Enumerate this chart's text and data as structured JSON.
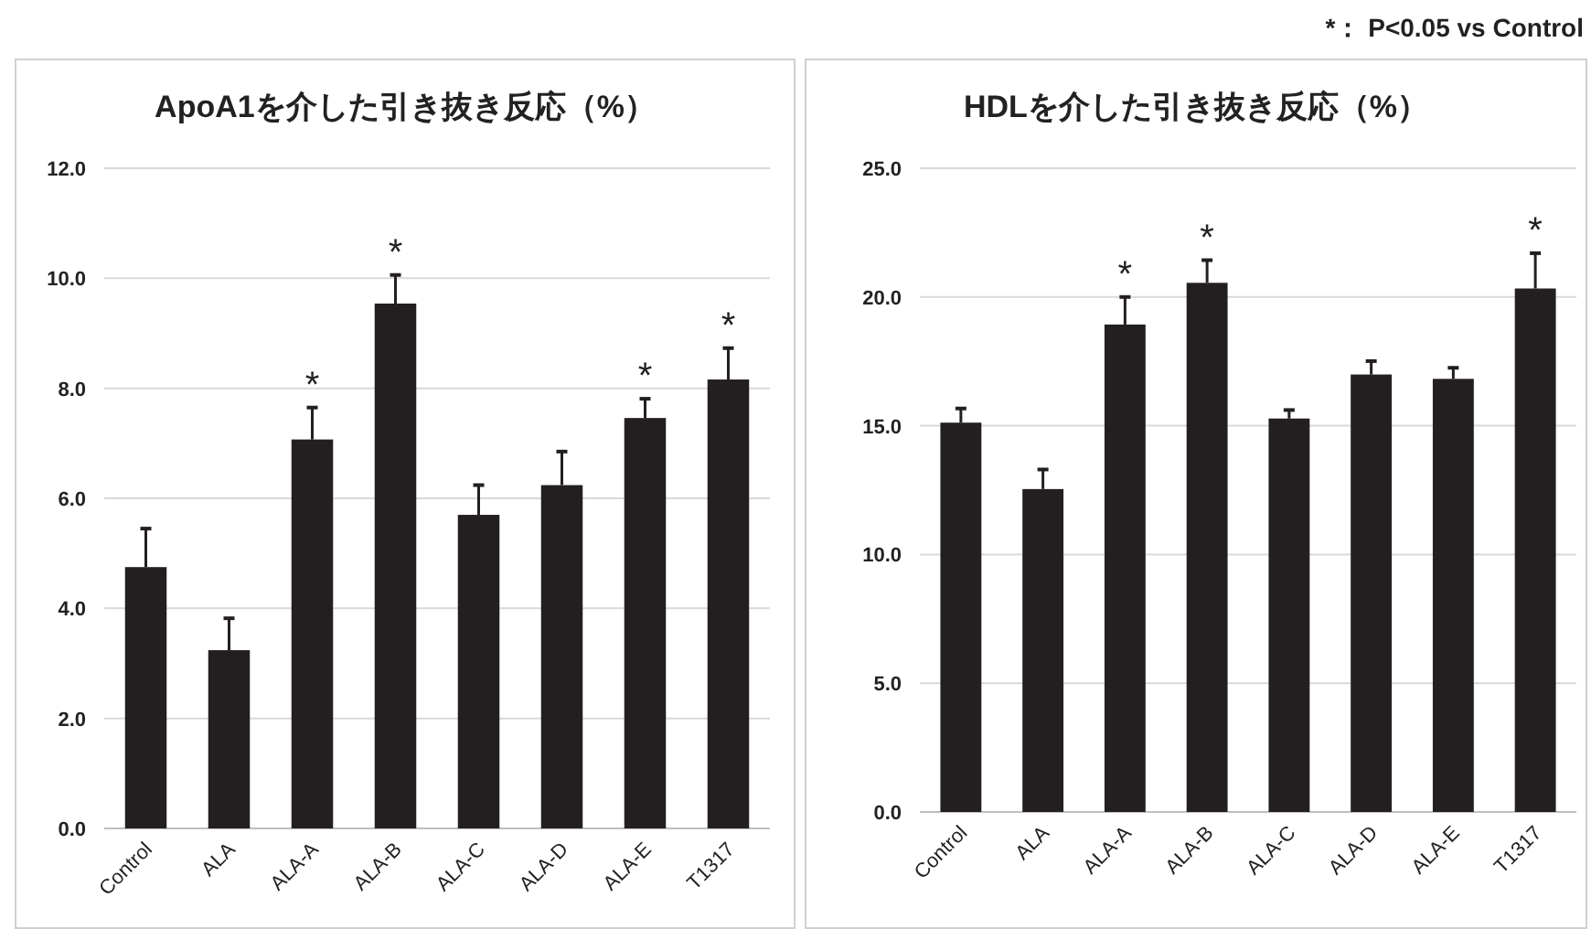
{
  "chart_data": [
    {
      "type": "bar",
      "title": "ApoA1を介した引き抜き反応（%）",
      "categories": [
        "Control",
        "ALA",
        "ALA-A",
        "ALA-B",
        "ALA-C",
        "ALA-D",
        "ALA-E",
        "T1317"
      ],
      "values": [
        4.75,
        3.24,
        7.07,
        9.54,
        5.7,
        6.24,
        7.46,
        8.16
      ],
      "errors": [
        0.7,
        0.58,
        0.58,
        0.52,
        0.54,
        0.61,
        0.35,
        0.57
      ],
      "color": "#231f20",
      "ylim": [
        0,
        12
      ],
      "yticks": [
        {
          "value": 0,
          "label": "0.0"
        },
        {
          "value": 2,
          "label": "2.0"
        },
        {
          "value": 4,
          "label": "4.0"
        },
        {
          "value": 6,
          "label": "6.0"
        },
        {
          "value": 8,
          "label": "8.0"
        },
        {
          "value": 10,
          "label": "10.0"
        },
        {
          "value": 12,
          "label": "12.0"
        }
      ],
      "grid": "y",
      "annotations": [
        {
          "text": "*",
          "x": "ALA-A",
          "y": 7.65
        },
        {
          "text": "*",
          "x": "ALA-B",
          "y": 10.06
        },
        {
          "text": "*",
          "x": "ALA-E",
          "y": 7.81
        },
        {
          "text": "*",
          "x": "T1317",
          "y": 8.73
        }
      ]
    },
    {
      "type": "bar",
      "title": "HDLを介した引き抜き反応（%）",
      "categories": [
        "Control",
        "ALA",
        "ALA-A",
        "ALA-B",
        "ALA-C",
        "ALA-D",
        "ALA-E",
        "T1317"
      ],
      "values": [
        15.12,
        12.54,
        18.93,
        20.55,
        15.28,
        16.99,
        16.82,
        20.33
      ],
      "errors": [
        0.55,
        0.76,
        1.07,
        0.88,
        0.33,
        0.52,
        0.43,
        1.37
      ],
      "color": "#231f20",
      "ylim": [
        0,
        25
      ],
      "yticks": [
        {
          "value": 0,
          "label": "0.0"
        },
        {
          "value": 5,
          "label": "5.0"
        },
        {
          "value": 10,
          "label": "10.0"
        },
        {
          "value": 15,
          "label": "15.0"
        },
        {
          "value": 20,
          "label": "20.0"
        },
        {
          "value": 25,
          "label": "25.0"
        }
      ],
      "grid": "y",
      "annotations": [
        {
          "text": "*",
          "x": "ALA-A",
          "y": 20.0
        },
        {
          "text": "*",
          "x": "ALA-B",
          "y": 21.42
        },
        {
          "text": "*",
          "x": "T1317",
          "y": 21.71
        },
        "*： P<0.05 vs Control"
      ]
    }
  ]
}
